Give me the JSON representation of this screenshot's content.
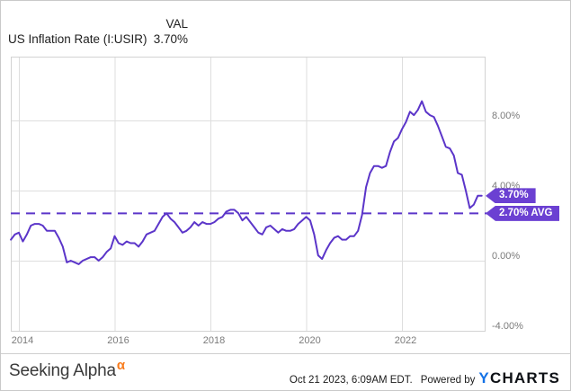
{
  "header": {
    "title": "US Inflation Rate (I:USIR)",
    "value_column_label": "VAL",
    "value_column_value": "3.70%"
  },
  "chart_data": {
    "type": "line",
    "title": "US Inflation Rate (I:USIR)",
    "unit": "percent",
    "grid": true,
    "legend": false,
    "xlim": [
      2013.83,
      2023.79
    ],
    "ylim": [
      -4.05,
      11.64
    ],
    "x_ticks": [
      {
        "value": 2014,
        "label": "2014"
      },
      {
        "value": 2016,
        "label": "2016"
      },
      {
        "value": 2018,
        "label": "2018"
      },
      {
        "value": 2020,
        "label": "2020"
      },
      {
        "value": 2022,
        "label": "2022"
      }
    ],
    "y_ticks": [
      {
        "value": 8,
        "label": "8.00%"
      },
      {
        "value": 4,
        "label": "4.00%"
      },
      {
        "value": 0,
        "label": "0.00%"
      },
      {
        "value": -4,
        "label": "-4.00%"
      }
    ],
    "avg_line": {
      "value": 2.7,
      "label": "2.70% AVG",
      "style": "dashed"
    },
    "last_label": {
      "value": 3.7,
      "label": "3.70%"
    },
    "line_color": "#5b35c9",
    "badge_color": "#6b40d2",
    "series": [
      {
        "name": "US Inflation Rate (I:USIR)",
        "start": "2013-11",
        "freq": "monthly",
        "values": [
          1.2,
          1.5,
          1.6,
          1.1,
          1.5,
          2.0,
          2.1,
          2.1,
          2.0,
          1.7,
          1.7,
          1.7,
          1.3,
          0.8,
          -0.1,
          0.0,
          -0.1,
          -0.2,
          0.0,
          0.1,
          0.2,
          0.2,
          0.0,
          0.2,
          0.5,
          0.7,
          1.4,
          1.0,
          0.9,
          1.1,
          1.0,
          1.0,
          0.8,
          1.1,
          1.5,
          1.6,
          1.7,
          2.1,
          2.5,
          2.7,
          2.4,
          2.2,
          1.9,
          1.6,
          1.7,
          1.9,
          2.2,
          2.0,
          2.2,
          2.1,
          2.1,
          2.2,
          2.4,
          2.5,
          2.8,
          2.9,
          2.9,
          2.7,
          2.3,
          2.5,
          2.2,
          1.9,
          1.6,
          1.5,
          1.9,
          2.0,
          1.8,
          1.6,
          1.8,
          1.7,
          1.7,
          1.8,
          2.1,
          2.3,
          2.5,
          2.3,
          1.5,
          0.3,
          0.1,
          0.6,
          1.0,
          1.3,
          1.4,
          1.2,
          1.2,
          1.4,
          1.4,
          1.7,
          2.6,
          4.2,
          5.0,
          5.4,
          5.4,
          5.3,
          5.4,
          6.2,
          6.8,
          7.0,
          7.5,
          7.9,
          8.5,
          8.3,
          8.6,
          9.1,
          8.5,
          8.3,
          8.2,
          7.7,
          7.1,
          6.5,
          6.4,
          6.0,
          5.0,
          4.9,
          4.0,
          3.0,
          3.2,
          3.7,
          3.7
        ]
      }
    ]
  },
  "footer": {
    "brand": "Seeking Alpha",
    "brand_superscript": "α",
    "brand_superscript_color": "#f87b1c",
    "timestamp": "Oct 21 2023, 6:09AM EDT.",
    "powered_by": "Powered by",
    "ycharts_y": "Y",
    "ycharts_rest": "CHARTS",
    "ycharts_y_color": "#1472e6"
  }
}
